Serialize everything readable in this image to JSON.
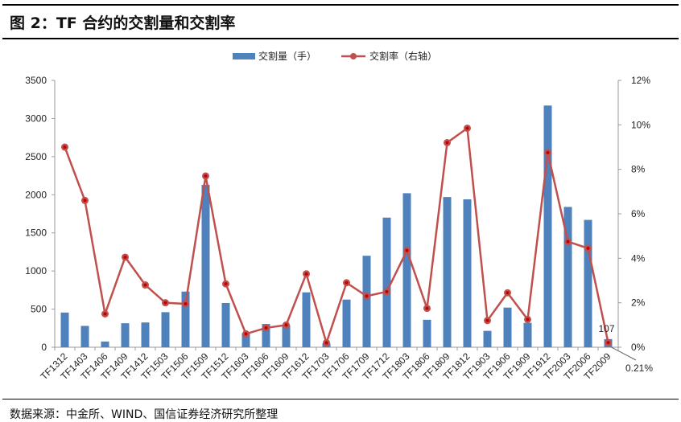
{
  "title": "图 2：TF 合约的交割量和交割率",
  "source": "数据来源：中金所、WIND、国信证券经济研究所整理",
  "colors": {
    "bar": "#4f81bd",
    "line": "#c0504d",
    "marker": "#c00000"
  },
  "chart_data": {
    "type": "bar+line",
    "title": "图 2：TF 合约的交割量和交割率",
    "categories": [
      "TF1312",
      "TF1403",
      "TF1406",
      "TF1409",
      "TF1412",
      "TF1503",
      "TF1506",
      "TF1509",
      "TF1512",
      "TF1603",
      "TF1606",
      "TF1609",
      "TF1612",
      "TF1703",
      "TF1706",
      "TF1709",
      "TF1712",
      "TF1803",
      "TF1806",
      "TF1809",
      "TF1812",
      "TF1903",
      "TF1906",
      "TF1909",
      "TF1912",
      "TF2003",
      "TF2006",
      "TF2009"
    ],
    "series": [
      {
        "name": "交割量（手）",
        "type": "bar",
        "axis": "left",
        "values": [
          455,
          280,
          75,
          315,
          325,
          460,
          730,
          2130,
          580,
          185,
          305,
          290,
          720,
          50,
          625,
          1200,
          1700,
          2020,
          360,
          1970,
          1940,
          215,
          520,
          320,
          3170,
          1840,
          1670,
          107
        ]
      },
      {
        "name": "交割率（右轴）",
        "type": "line",
        "axis": "right",
        "values": [
          9.0,
          6.6,
          1.5,
          4.05,
          2.8,
          2.0,
          1.95,
          7.7,
          2.85,
          0.6,
          0.87,
          1.0,
          3.3,
          0.2,
          2.9,
          2.3,
          2.5,
          4.35,
          1.75,
          9.2,
          9.85,
          1.2,
          2.45,
          1.25,
          8.75,
          4.75,
          4.45,
          0.21
        ]
      }
    ],
    "ylim": [
      0,
      3500
    ],
    "yticks": [
      "0",
      "500",
      "1000",
      "1500",
      "2000",
      "2500",
      "3000",
      "3500"
    ],
    "y2lim": [
      0,
      12
    ],
    "y2ticks": [
      "0%",
      "2%",
      "4%",
      "6%",
      "8%",
      "10%",
      "12%"
    ],
    "annotations": [
      "107",
      "0.21%"
    ],
    "legend": "top-center"
  }
}
